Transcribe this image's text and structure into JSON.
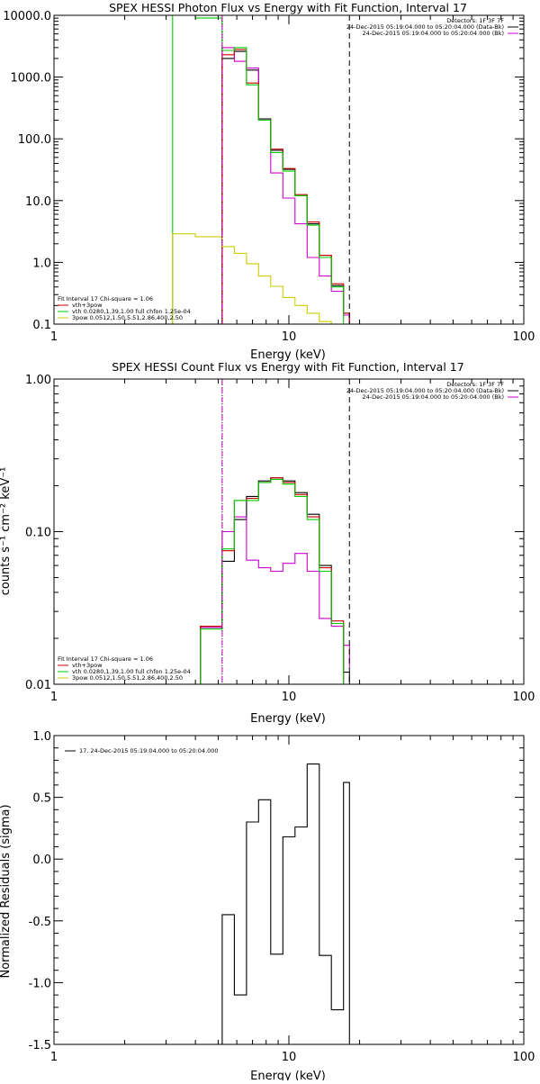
{
  "chart_data": [
    {
      "type": "line",
      "title": "SPEX HESSI Photon Flux vs Energy with Fit Function, Interval 17",
      "xlabel": "Energy (keV)",
      "ylabel": "",
      "x_scale": "log",
      "y_scale": "log",
      "xlim": [
        1,
        100
      ],
      "ylim": [
        0.1,
        10000
      ],
      "x_ticks": [
        "1",
        "10",
        "100"
      ],
      "x_tick_values": [
        1,
        10,
        100
      ],
      "y_ticks": [
        "0.1",
        "1.0",
        "10.0",
        "100.0",
        "1000.0",
        "10000.0"
      ],
      "y_tick_values": [
        0.1,
        1,
        10,
        100,
        1000,
        10000
      ],
      "vlines": [
        {
          "x": 5.2,
          "style": "dotted",
          "color": "#000000"
        },
        {
          "x": 5.2,
          "style": "dashed",
          "color": "#cc00cc"
        },
        {
          "x": 18.1,
          "style": "dashed",
          "color": "#000000"
        }
      ],
      "info_text": [
        "Detectors: 1F 3F 7F",
        "24-Dec-2015 05:19:04.000 to 05:20:04.000 (Data-Bk)",
        "24-Dec-2015 05:19:04.000 to 05:20:04.000 (Bk)"
      ],
      "info_colors": [
        "#000000",
        "#000000",
        "#cc00cc"
      ],
      "legend_text": [
        "Fit Interval 17    Chi-square = 1.06",
        "vth+3pow",
        "vth 0.0280,1.39,1.00  full chfon 1.25e-04",
        "3pow 0.0512,1.50,5.51,2.86,400,2.50"
      ],
      "legend_colors": [
        "",
        "#cc0000",
        "#00cc00",
        "#cccc00"
      ],
      "series": [
        {
          "name": "Data-Bk",
          "color": "#000000",
          "edges": [
            5.2,
            5.86,
            6.6,
            7.43,
            8.37,
            9.43,
            10.62,
            11.96,
            13.47,
            15.17,
            17.09,
            18.1
          ],
          "values": [
            2000,
            2600,
            1300,
            210,
            65,
            32,
            12,
            4.2,
            1.3,
            0.42,
            0.15
          ]
        },
        {
          "name": "Bk",
          "color": "#cc00cc",
          "edges": [
            5.2,
            5.86,
            6.6,
            7.43,
            8.37,
            9.43,
            10.62,
            11.96,
            13.47,
            15.17,
            17.09,
            18.1
          ],
          "values": [
            3000,
            1800,
            1400,
            200,
            28,
            11,
            4.2,
            1.2,
            0.6,
            0.34,
            0.14
          ]
        },
        {
          "name": "vth+3pow",
          "color": "#cc0000",
          "edges": [
            5.2,
            5.86,
            6.6,
            7.43,
            8.37,
            9.43,
            10.62,
            11.96,
            13.47,
            15.17,
            17.09,
            18.1
          ],
          "values": [
            2300,
            2800,
            800,
            200,
            68,
            33,
            12.5,
            4.5,
            1.3,
            0.45,
            0.15
          ]
        },
        {
          "name": "vth",
          "color": "#00cc00",
          "edges": [
            3.2,
            4.0,
            5.2,
            5.86,
            6.6,
            7.43,
            8.37,
            9.43,
            10.62,
            11.96,
            13.47,
            15.17,
            17.09
          ],
          "values": [
            12000,
            9000,
            2700,
            3000,
            750,
            200,
            60,
            30,
            12,
            4,
            1.2,
            0.4
          ]
        },
        {
          "name": "3pow",
          "color": "#cccc00",
          "edges": [
            3.2,
            4.0,
            5.2,
            5.86,
            6.6,
            7.43,
            8.37,
            9.43,
            10.62,
            11.96,
            13.47,
            15.17,
            17.09
          ],
          "values": [
            2.9,
            2.6,
            1.8,
            1.4,
            0.95,
            0.6,
            0.41,
            0.27,
            0.2,
            0.15,
            0.11,
            0.09
          ]
        }
      ]
    },
    {
      "type": "line",
      "title": "SPEX HESSI Count Flux vs Energy with Fit Function, Interval 17",
      "xlabel": "Energy (keV)",
      "ylabel": "counts s⁻¹ cm⁻² keV⁻¹",
      "x_scale": "log",
      "y_scale": "log",
      "xlim": [
        1,
        100
      ],
      "ylim": [
        0.01,
        1
      ],
      "x_ticks": [
        "1",
        "10",
        "100"
      ],
      "x_tick_values": [
        1,
        10,
        100
      ],
      "y_ticks": [
        "0.01",
        "0.10",
        "1.00"
      ],
      "y_tick_values": [
        0.01,
        0.1,
        1
      ],
      "vlines": [
        {
          "x": 5.2,
          "style": "dotted",
          "color": "#000000"
        },
        {
          "x": 5.2,
          "style": "dashed",
          "color": "#cc00cc"
        },
        {
          "x": 18.1,
          "style": "dashed",
          "color": "#000000"
        }
      ],
      "info_text": [
        "Detectors: 1F 3F 7F",
        "24-Dec-2015 05:19:04.000 to 05:20:04.000 (Data-Bk)",
        "24-Dec-2015 05:19:04.000 to 05:20:04.000 (Bk)"
      ],
      "info_colors": [
        "#000000",
        "#000000",
        "#cc00cc"
      ],
      "legend_text": [
        "Fit Interval 17    Chi-square = 1.06",
        "vth+3pow",
        "vth 0.0280,1.39,1.00  full chfon 1.25e-04",
        "3pow 0.0512,1.50,5.51,2.86,400,2.50"
      ],
      "legend_colors": [
        "",
        "#cc0000",
        "#00cc00",
        "#cccc00"
      ],
      "series": [
        {
          "name": "Data-Bk",
          "color": "#000000",
          "edges": [
            4.2,
            5.2,
            5.86,
            6.6,
            7.43,
            8.37,
            9.43,
            10.62,
            11.96,
            13.47,
            15.17,
            17.09,
            18.1
          ],
          "values": [
            0.024,
            0.064,
            0.12,
            0.17,
            0.215,
            0.225,
            0.215,
            0.18,
            0.13,
            0.06,
            0.025,
            0.012
          ]
        },
        {
          "name": "Bk",
          "color": "#cc00cc",
          "edges": [
            4.2,
            5.2,
            5.86,
            6.6,
            7.43,
            8.37,
            9.43,
            10.62,
            11.96,
            13.47,
            15.17,
            17.09,
            18.1
          ],
          "values": [
            0.0235,
            0.1,
            0.125,
            0.065,
            0.058,
            0.055,
            0.062,
            0.072,
            0.055,
            0.027,
            0.024,
            0.018,
            0.013
          ]
        },
        {
          "name": "vth+3pow",
          "color": "#cc0000",
          "edges": [
            4.2,
            5.2,
            5.86,
            6.6,
            7.43,
            8.37,
            9.43,
            10.62,
            11.96,
            13.47,
            15.17,
            17.09
          ],
          "values": [
            0.024,
            0.075,
            0.16,
            0.165,
            0.21,
            0.225,
            0.21,
            0.175,
            0.125,
            0.058,
            0.026
          ]
        },
        {
          "name": "vth",
          "color": "#00cc00",
          "edges": [
            4.2,
            5.2,
            5.86,
            6.6,
            7.43,
            8.37,
            9.43,
            10.62,
            11.96,
            13.47,
            15.17,
            17.09
          ],
          "values": [
            0.023,
            0.077,
            0.16,
            0.16,
            0.21,
            0.22,
            0.205,
            0.17,
            0.12,
            0.055,
            0.025
          ]
        }
      ]
    },
    {
      "type": "line",
      "title": "",
      "xlabel": "Energy (keV)",
      "ylabel": "Normalized Residuals (sigma)",
      "x_scale": "log",
      "y_scale": "linear",
      "xlim": [
        1,
        100
      ],
      "ylim": [
        -1.5,
        1.0
      ],
      "x_ticks": [
        "1",
        "10",
        "100"
      ],
      "x_tick_values": [
        1,
        10,
        100
      ],
      "y_ticks": [
        "-1.5",
        "-1.0",
        "-0.5",
        "0.0",
        "0.5",
        "1.0"
      ],
      "y_tick_values": [
        -1.5,
        -1.0,
        -0.5,
        0.0,
        0.5,
        1.0
      ],
      "legend_text": [
        "17. 24-Dec-2015 05:19:04.000 to 05:20:04.000"
      ],
      "legend_colors": [
        "#000000"
      ],
      "series": [
        {
          "name": "",
          "color": "#000000",
          "edges": [
            5.2,
            5.86,
            6.6,
            7.43,
            8.37,
            9.43,
            10.62,
            11.96,
            13.47,
            15.17,
            17.09,
            18.1
          ],
          "values": [
            -0.45,
            -1.1,
            0.3,
            0.48,
            -0.77,
            0.18,
            0.26,
            0.77,
            -0.78,
            -1.22,
            0.62
          ]
        }
      ]
    }
  ]
}
